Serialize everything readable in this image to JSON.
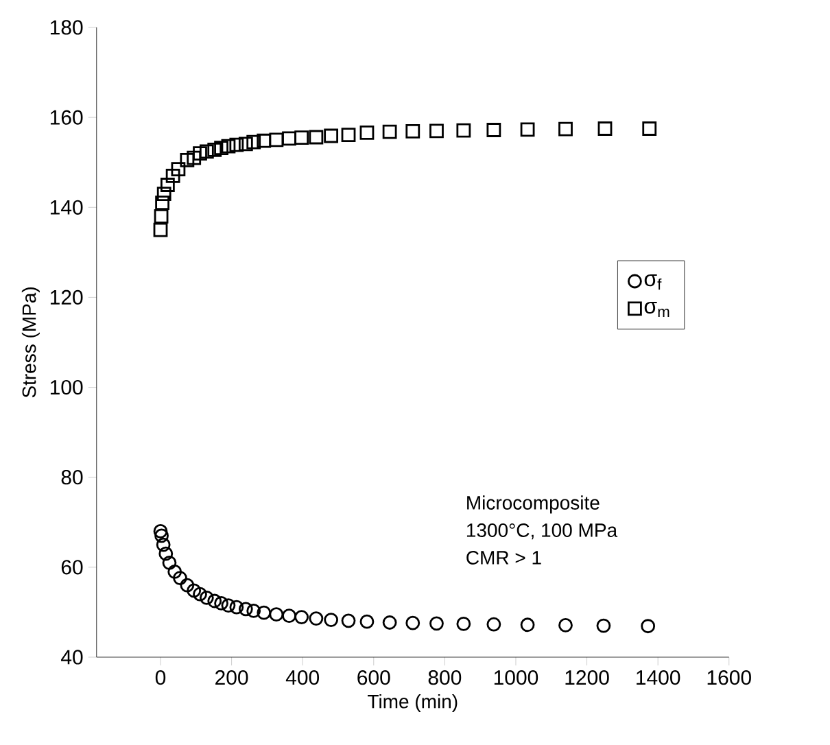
{
  "chart_data": {
    "type": "scatter",
    "xlabel": "Time (min)",
    "ylabel": "Stress (MPa)",
    "xlim": [
      -180,
      1600
    ],
    "xticks": [
      0,
      200,
      400,
      600,
      800,
      1000,
      1200,
      1400,
      1600
    ],
    "ylim": [
      40,
      180
    ],
    "yticks": [
      40,
      60,
      80,
      100,
      120,
      140,
      160,
      180
    ],
    "grid": false,
    "legend": "right",
    "annotations": [
      "Microcomposite",
      "1300°C, 100 MPa",
      "CMR > 1"
    ],
    "series": [
      {
        "name": "σ$_{f}$",
        "color": "#000000",
        "marker": "circle",
        "x": [
          0,
          3,
          8,
          15,
          25,
          40,
          55,
          75,
          94,
          111,
          130,
          152,
          171,
          191,
          214,
          240,
          262,
          291,
          326,
          362,
          397,
          438,
          480,
          529,
          581,
          645,
          710,
          777,
          853,
          938,
          1033,
          1140,
          1247,
          1372
        ],
        "values": [
          68,
          67,
          65,
          63,
          61,
          59,
          57.6,
          56,
          54.8,
          54,
          53.2,
          52.5,
          52,
          51.5,
          51.1,
          50.7,
          50.3,
          49.9,
          49.5,
          49.2,
          48.9,
          48.6,
          48.3,
          48.1,
          47.9,
          47.7,
          47.6,
          47.5,
          47.4,
          47.3,
          47.2,
          47.1,
          47,
          46.9
        ]
      },
      {
        "name": "σ$_{m}$",
        "color": "#000000",
        "marker": "square",
        "x": [
          0,
          2,
          5,
          10,
          20,
          35,
          50,
          75,
          94,
          111,
          130,
          152,
          171,
          191,
          214,
          240,
          262,
          291,
          326,
          362,
          397,
          438,
          480,
          529,
          581,
          645,
          710,
          777,
          853,
          938,
          1033,
          1140,
          1251,
          1376
        ],
        "values": [
          135,
          138,
          141,
          143,
          145,
          147,
          148.5,
          150.5,
          151,
          152,
          152.4,
          152.8,
          153.2,
          153.6,
          153.9,
          154.1,
          154.5,
          154.8,
          155,
          155.3,
          155.5,
          155.6,
          155.9,
          156.1,
          156.6,
          156.8,
          156.9,
          157,
          157.1,
          157.2,
          157.3,
          157.4,
          157.5,
          157.5
        ]
      }
    ]
  }
}
